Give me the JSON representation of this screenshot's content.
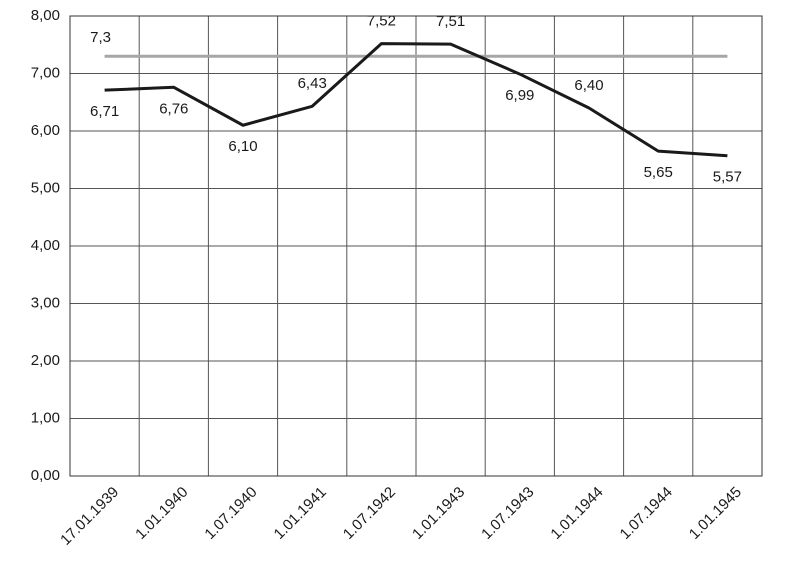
{
  "chart_data": {
    "type": "line",
    "categories": [
      "17.01.1939",
      "1.01.1940",
      "1.07.1940",
      "1.01.1941",
      "1.07.1942",
      "1.01.1943",
      "1.07.1943",
      "1.01.1944",
      "1.07.1944",
      "1.01.1945"
    ],
    "series": [
      {
        "color": "#1a1a1a",
        "values": [
          6.71,
          6.76,
          6.1,
          6.43,
          7.52,
          7.51,
          6.99,
          6.4,
          5.65,
          5.57
        ],
        "value_labels": [
          "6,71",
          "6,76",
          "6,10",
          "6,43",
          "7,52",
          "7,51",
          "6,99",
          "6,40",
          "5,65",
          "5,57"
        ]
      },
      {
        "color": "#a6a6a6",
        "values": [
          7.3,
          7.3,
          7.3,
          7.3,
          7.3,
          7.3,
          7.3,
          7.3,
          7.3,
          7.3
        ],
        "value_labels": [
          "7,3",
          null,
          null,
          null,
          null,
          null,
          null,
          null,
          null,
          null
        ]
      }
    ],
    "ylim": [
      0,
      8
    ],
    "yticks": [
      {
        "value": 0,
        "label": "0,00"
      },
      {
        "value": 1,
        "label": "1,00"
      },
      {
        "value": 2,
        "label": "2,00"
      },
      {
        "value": 3,
        "label": "3,00"
      },
      {
        "value": 4,
        "label": "4,00"
      },
      {
        "value": 5,
        "label": "5,00"
      },
      {
        "value": 6,
        "label": "6,00"
      },
      {
        "value": 7,
        "label": "7,00"
      },
      {
        "value": 8,
        "label": "8,00"
      }
    ],
    "grid": true
  }
}
